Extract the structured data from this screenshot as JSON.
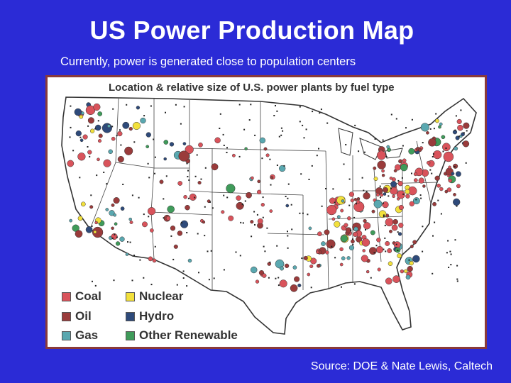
{
  "title": "US Power Production Map",
  "subtitle": "Currently, power is generated close to population centers",
  "map": {
    "heading": "Location & relative size of U.S. power plants by fuel type",
    "legend": [
      {
        "label": "Coal",
        "color": "#d9535b"
      },
      {
        "label": "Oil",
        "color": "#9a3b3b"
      },
      {
        "label": "Gas",
        "color": "#5aa8b0"
      },
      {
        "label": "Nuclear",
        "color": "#f2e03c"
      },
      {
        "label": "Hydro",
        "color": "#2e4a7a"
      },
      {
        "label": "Other Renewable",
        "color": "#3f9b5a"
      }
    ]
  },
  "source": "Source: DOE & Nate Lewis, Caltech"
}
